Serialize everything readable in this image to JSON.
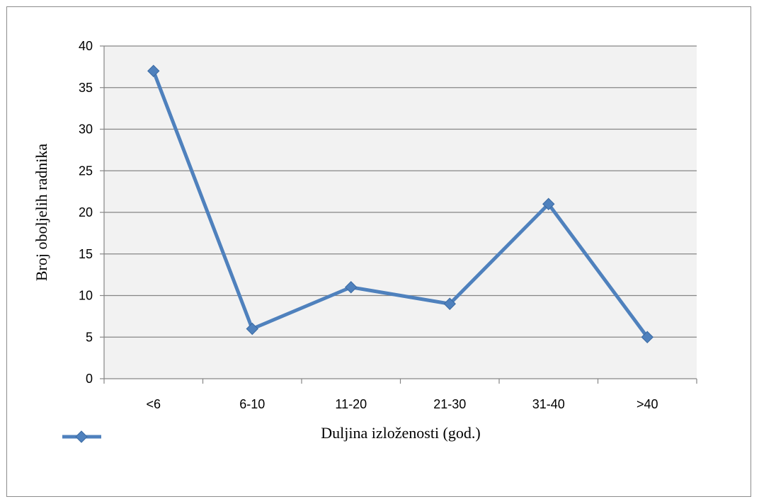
{
  "chart_data": {
    "type": "line",
    "categories": [
      "<6",
      "6-10",
      "11-20",
      "21-30",
      "31-40",
      ">40"
    ],
    "series": [
      {
        "values": [
          37,
          6,
          11,
          9,
          21,
          5
        ]
      }
    ],
    "xlabel": "Duljina izloženosti (god.)",
    "ylabel": "Broj oboljelih radnika",
    "ylim": [
      0,
      40
    ],
    "yticks": [
      0,
      5,
      10,
      15,
      20,
      25,
      30,
      35,
      40
    ],
    "grid": true,
    "legend": "bottom-left",
    "colors": {
      "series": "#4f81bd",
      "plot_background": "#f2f2f2",
      "gridline": "#868686"
    }
  }
}
